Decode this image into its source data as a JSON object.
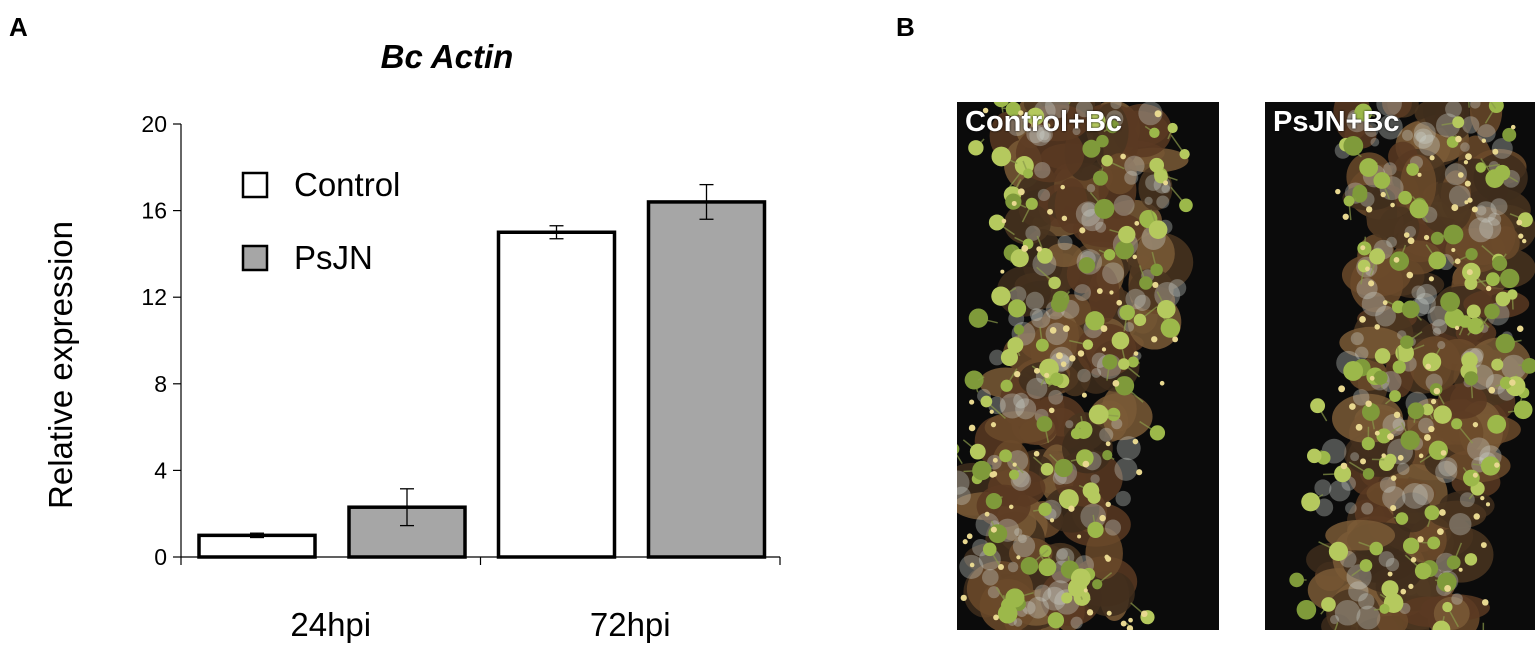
{
  "panels": {
    "a_label": "A",
    "b_label": "B"
  },
  "chart_data": {
    "type": "bar",
    "title": "Bc Actin",
    "xlabel": "",
    "ylabel": "Relative expression",
    "categories": [
      "24hpi",
      "72hpi"
    ],
    "series": [
      {
        "name": "Control",
        "values": [
          1.0,
          15.0
        ],
        "errors": [
          0.1,
          0.3
        ],
        "color": "#ffffff"
      },
      {
        "name": "PsJN",
        "values": [
          2.3,
          16.4
        ],
        "errors": [
          0.85,
          0.8
        ],
        "color": "#a6a6a6"
      }
    ],
    "ylim": [
      0,
      20
    ],
    "yticks": [
      0,
      4,
      8,
      12,
      16,
      20
    ],
    "grid": false,
    "legend_position": "top-left"
  },
  "photos": [
    {
      "label": "Control+Bc"
    },
    {
      "label": "PsJN+Bc"
    }
  ],
  "colors": {
    "bar_stroke": "#000000",
    "psjn_fill": "#a6a6a6",
    "control_fill": "#ffffff",
    "photo_bg": "#0b0b0b"
  }
}
